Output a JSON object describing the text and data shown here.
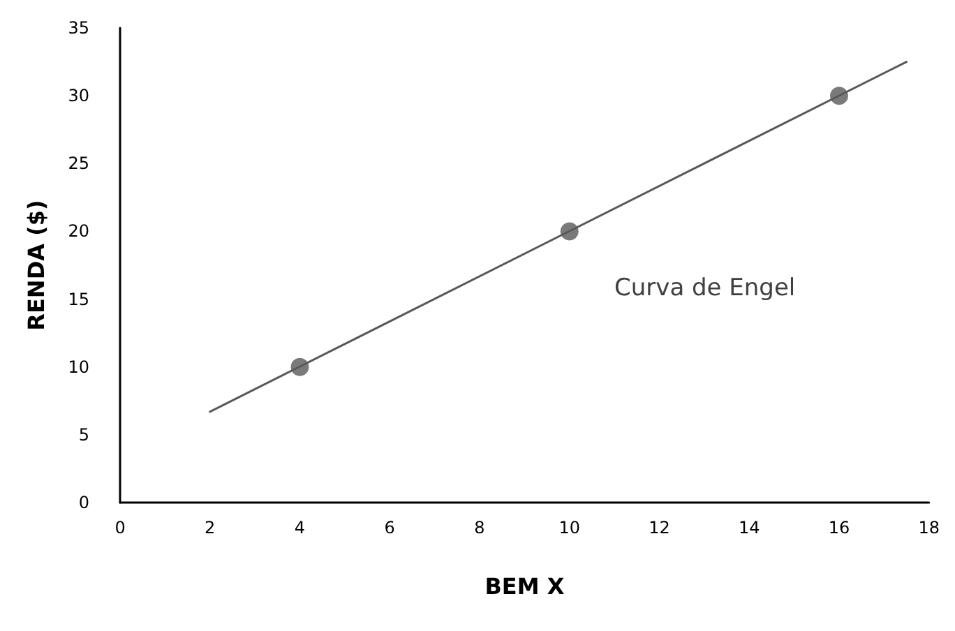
{
  "chart_data": {
    "type": "scatter",
    "xlabel": "BEM X",
    "ylabel": "RENDA ($)",
    "xlim": [
      0,
      18
    ],
    "xticks": [
      0,
      2,
      4,
      6,
      8,
      10,
      12,
      14,
      16,
      18
    ],
    "ylim": [
      0,
      35
    ],
    "yticks": [
      0,
      5,
      10,
      15,
      20,
      25,
      30,
      35
    ],
    "grid": false,
    "series": [
      {
        "type": "line",
        "x": [
          2,
          17.5
        ],
        "values": [
          6.7,
          32.5
        ],
        "color": "#595959",
        "marker": "none",
        "line_style": "solid"
      },
      {
        "x": [
          4,
          10,
          16
        ],
        "values": [
          10,
          20,
          30
        ],
        "color": "#595959",
        "marker": "circle"
      }
    ],
    "annotations": [
      "Curva de Engel"
    ]
  }
}
